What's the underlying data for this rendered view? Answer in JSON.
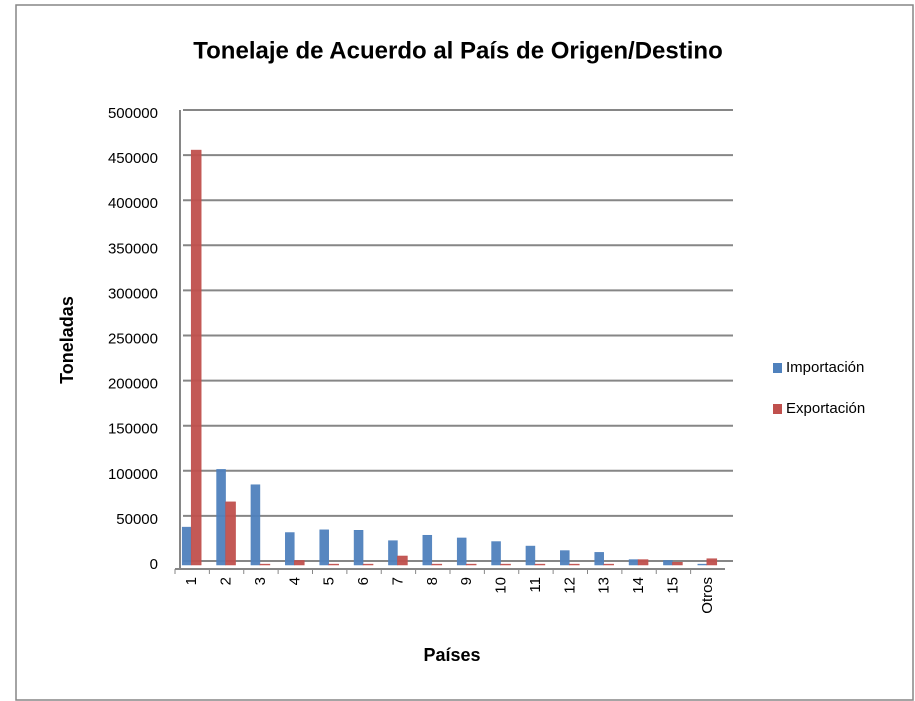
{
  "chart_data": {
    "type": "bar",
    "title": "Tonelaje de Acuerdo al País de Origen/Destino",
    "x_label": "Países",
    "y_label": "Toneladas",
    "categories": [
      "1",
      "2",
      "3",
      "4",
      "5",
      "6",
      "7",
      "8",
      "9",
      "10",
      "11",
      "12",
      "13",
      "14",
      "15",
      "Otros"
    ],
    "series": [
      {
        "name": "Importación",
        "color": "#4f81bd",
        "values": [
          42000,
          106000,
          89000,
          36000,
          39000,
          38500,
          27000,
          33000,
          30000,
          26000,
          21000,
          16000,
          14000,
          6000,
          5000,
          1000
        ]
      },
      {
        "name": "Exportación",
        "color": "#c0504d",
        "values": [
          460000,
          70000,
          1000,
          5000,
          1000,
          1000,
          10000,
          1000,
          1000,
          1000,
          1000,
          1000,
          1000,
          6000,
          3000,
          7000
        ]
      }
    ],
    "ylim": [
      0,
      500000
    ],
    "yticks": [
      0,
      50000,
      100000,
      150000,
      200000,
      250000,
      300000,
      350000,
      400000,
      450000,
      500000
    ],
    "grid": true,
    "legend": "right"
  }
}
